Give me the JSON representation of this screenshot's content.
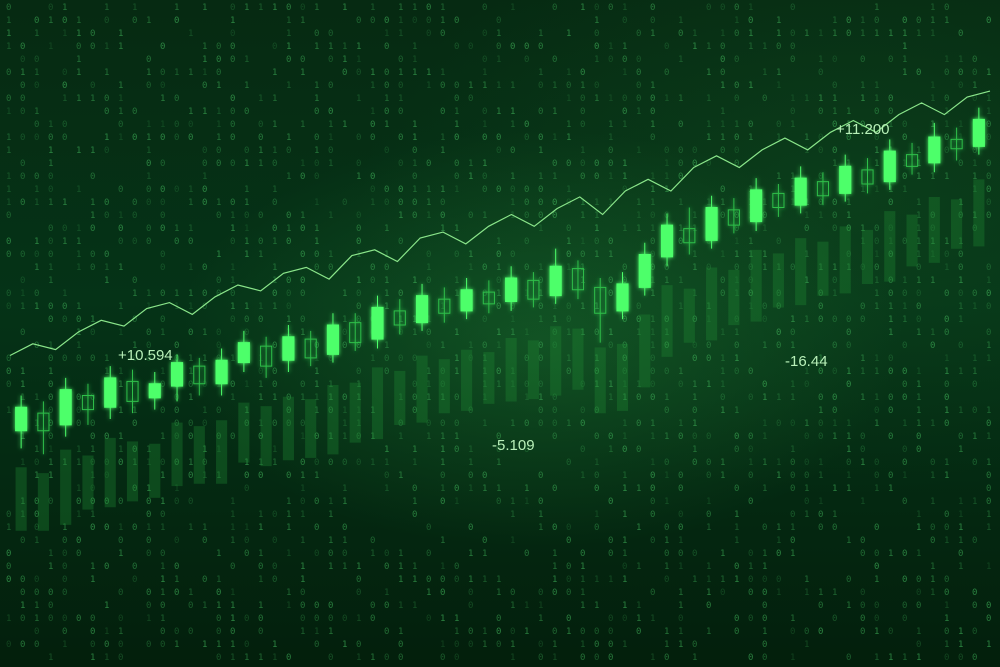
{
  "chart_data": {
    "type": "candlestick",
    "title": "",
    "xlabel": "",
    "ylabel": "",
    "grid": false,
    "legend": "none",
    "ylim": [
      -20,
      20
    ],
    "candles": [
      {
        "o": -9.0,
        "c": -7.0,
        "h": -6.0,
        "l": -10.5
      },
      {
        "o": -7.5,
        "c": -9.0,
        "h": -6.5,
        "l": -11.0
      },
      {
        "o": -8.5,
        "c": -5.5,
        "h": -4.5,
        "l": -9.5
      },
      {
        "o": -6.0,
        "c": -7.2,
        "h": -5.0,
        "l": -8.5
      },
      {
        "o": -7.0,
        "c": -4.5,
        "h": -3.5,
        "l": -8.0
      },
      {
        "o": -4.8,
        "c": -6.5,
        "h": -3.8,
        "l": -7.5
      },
      {
        "o": -6.2,
        "c": -5.0,
        "h": -4.0,
        "l": -7.2
      },
      {
        "o": -5.2,
        "c": -3.2,
        "h": -2.5,
        "l": -6.5
      },
      {
        "o": -3.5,
        "c": -5.0,
        "h": -2.8,
        "l": -6.0
      },
      {
        "o": -5.0,
        "c": -3.0,
        "h": -2.0,
        "l": -6.0
      },
      {
        "o": -3.2,
        "c": -1.5,
        "h": -0.5,
        "l": -4.0
      },
      {
        "o": -1.8,
        "c": -3.5,
        "h": -1.0,
        "l": -4.5
      },
      {
        "o": -3.0,
        "c": -1.0,
        "h": 0.0,
        "l": -4.0
      },
      {
        "o": -1.2,
        "c": -2.8,
        "h": -0.5,
        "l": -3.5
      },
      {
        "o": -2.5,
        "c": 0.0,
        "h": 1.0,
        "l": -3.2
      },
      {
        "o": 0.2,
        "c": -1.5,
        "h": 1.0,
        "l": -2.2
      },
      {
        "o": -1.2,
        "c": 1.5,
        "h": 2.5,
        "l": -2.0
      },
      {
        "o": 1.2,
        "c": 0.0,
        "h": 2.2,
        "l": -0.8
      },
      {
        "o": 0.2,
        "c": 2.5,
        "h": 3.5,
        "l": -0.5
      },
      {
        "o": 2.2,
        "c": 1.0,
        "h": 3.2,
        "l": 0.2
      },
      {
        "o": 1.2,
        "c": 3.0,
        "h": 4.0,
        "l": 0.5
      },
      {
        "o": 2.8,
        "c": 1.8,
        "h": 3.8,
        "l": 1.0
      },
      {
        "o": 2.0,
        "c": 4.0,
        "h": 5.0,
        "l": 1.2
      },
      {
        "o": 3.8,
        "c": 2.2,
        "h": 4.5,
        "l": 1.5
      },
      {
        "o": 2.5,
        "c": 5.0,
        "h": 6.5,
        "l": 1.8
      },
      {
        "o": 4.8,
        "c": 3.0,
        "h": 5.5,
        "l": 2.2
      },
      {
        "o": 3.2,
        "c": 1.0,
        "h": 4.0,
        "l": -1.5
      },
      {
        "o": 1.2,
        "c": 3.5,
        "h": 4.5,
        "l": 0.5
      },
      {
        "o": 3.2,
        "c": 6.0,
        "h": 7.0,
        "l": 2.5
      },
      {
        "o": 5.8,
        "c": 8.5,
        "h": 9.5,
        "l": 5.0
      },
      {
        "o": 8.2,
        "c": 7.0,
        "h": 10.0,
        "l": 6.0
      },
      {
        "o": 7.2,
        "c": 10.0,
        "h": 11.0,
        "l": 6.5
      },
      {
        "o": 9.8,
        "c": 8.5,
        "h": 10.8,
        "l": 7.8
      },
      {
        "o": 8.8,
        "c": 11.5,
        "h": 12.5,
        "l": 8.0
      },
      {
        "o": 11.2,
        "c": 10.0,
        "h": 12.0,
        "l": 9.2
      },
      {
        "o": 10.2,
        "c": 12.5,
        "h": 13.5,
        "l": 9.5
      },
      {
        "o": 12.2,
        "c": 11.0,
        "h": 13.0,
        "l": 10.2
      },
      {
        "o": 11.2,
        "c": 13.5,
        "h": 14.5,
        "l": 10.5
      },
      {
        "o": 13.2,
        "c": 12.0,
        "h": 14.2,
        "l": 11.2
      },
      {
        "o": 12.2,
        "c": 14.8,
        "h": 15.8,
        "l": 11.5
      },
      {
        "o": 14.5,
        "c": 13.5,
        "h": 15.5,
        "l": 12.8
      },
      {
        "o": 13.8,
        "c": 16.0,
        "h": 17.2,
        "l": 13.0
      },
      {
        "o": 15.8,
        "c": 15.0,
        "h": 16.8,
        "l": 14.0
      },
      {
        "o": 15.2,
        "c": 17.5,
        "h": 18.5,
        "l": 14.5
      }
    ],
    "line_series": [
      -6.0,
      -5.0,
      -5.5,
      -4.0,
      -3.0,
      -3.5,
      -2.0,
      -1.5,
      -2.5,
      -1.0,
      0.0,
      -0.5,
      1.0,
      1.5,
      0.5,
      2.5,
      3.0,
      2.0,
      4.0,
      4.5,
      3.5,
      5.0,
      6.0,
      5.0,
      6.5,
      7.5,
      6.0,
      8.0,
      9.0,
      8.0,
      10.0,
      11.0,
      10.0,
      11.5,
      12.5,
      11.5,
      13.0,
      14.0,
      13.0,
      14.5,
      15.5,
      14.5,
      16.0,
      16.5
    ],
    "labels": [
      {
        "text": "+10.594",
        "value": 10.594
      },
      {
        "text": "-5.109",
        "value": -5.109
      },
      {
        "text": "-16.44",
        "value": -16.44
      },
      {
        "text": "+11.200",
        "value": 11.2
      }
    ]
  },
  "colors": {
    "bull": "#4dff6a",
    "bear": "#2fbf4a",
    "line": "#8ae58a",
    "digits": "#3aa552"
  }
}
